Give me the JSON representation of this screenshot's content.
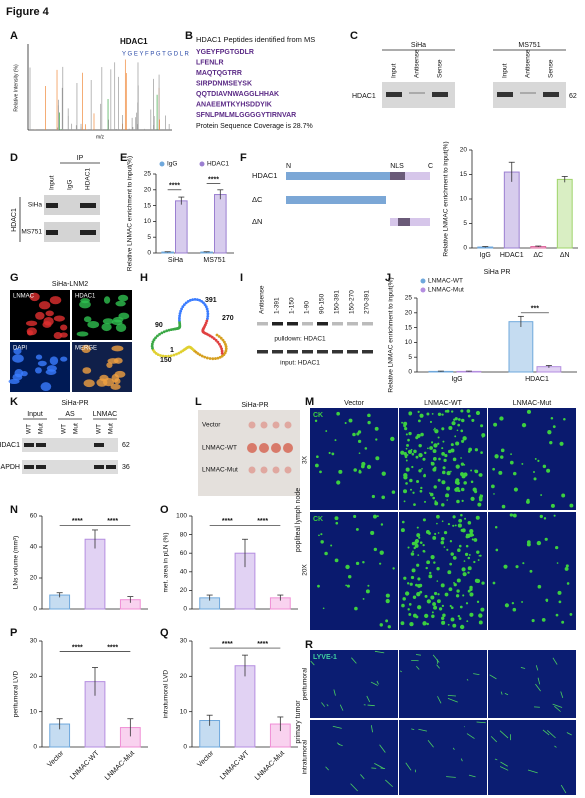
{
  "figure_title": "Figure 4",
  "panel_labels": [
    "A",
    "B",
    "C",
    "D",
    "E",
    "F",
    "G",
    "H",
    "I",
    "J",
    "K",
    "L",
    "M",
    "N",
    "O",
    "P",
    "Q",
    "R"
  ],
  "A": {
    "title": "HDAC1",
    "y_label": "Relative Intensity (%)",
    "x_label": "m/z",
    "sequence": "Y G E Y F P G T G D L R"
  },
  "B": {
    "title": "HDAC1 Peptides identified from MS",
    "peptides": [
      "YGEYFPGTGDLR",
      "LFENLR",
      "MAQTQGTRR",
      "SIRPDNMSEYSK",
      "QQTDIAVNWAGGLHHAK",
      "ANAEEMTKYHSDDYIK",
      "SFNLPMLMLGGGGYTIRNVAR"
    ],
    "coverage": "Protein Sequence Coverage is 28.7%"
  },
  "C": {
    "cells": [
      "SiHa",
      "MS751"
    ],
    "lanes": [
      "Input",
      "Antisense",
      "Sense"
    ],
    "protein": "HDAC1",
    "marker": "62"
  },
  "D": {
    "ip": "IP",
    "lanes": [
      "Input",
      "IgG",
      "HDAC1"
    ],
    "protein": "HDAC1",
    "cells": [
      "SiHa",
      "MS751"
    ]
  },
  "F_schematic": {
    "ends": [
      "N",
      "NLS",
      "C"
    ],
    "constructs": [
      "HDAC1",
      "ΔC",
      "ΔN"
    ]
  },
  "G": {
    "title": "SiHa-LNM2",
    "channels": [
      "LNMAC",
      "HDAC1",
      "DAPI",
      "MERGE"
    ]
  },
  "H": {
    "positions": [
      "1",
      "90",
      "150",
      "270",
      "391"
    ]
  },
  "I": {
    "lanes": [
      "Antisense",
      "1-391",
      "1-150",
      "1-90",
      "90-150",
      "150-391",
      "150-270",
      "270-391"
    ],
    "rows": [
      "pulldown: HDAC1",
      "input: HDAC1"
    ]
  },
  "K": {
    "title": "SiHa-PR",
    "groups": [
      "Input",
      "AS",
      "LNMAC"
    ],
    "lanes": [
      "WT",
      "Mut"
    ],
    "proteins": [
      "HDAC1",
      "GAPDH"
    ],
    "markers": [
      "62",
      "36"
    ]
  },
  "L": {
    "title": "SiHa-PR",
    "rows": [
      "Vector",
      "LNMAC-WT",
      "LNMAC-Mut"
    ]
  },
  "M": {
    "columns": [
      "Vector",
      "LNMAC-WT",
      "LNMAC-Mut"
    ],
    "stain": "CK",
    "magnifications": [
      "3X",
      "20X"
    ],
    "tissue": "popliteal lymph node"
  },
  "R": {
    "stain": "LYVE-1",
    "regions": [
      "peritumoral",
      "intratumoral"
    ],
    "tissue": "primary tumor"
  },
  "chart_data": [
    {
      "type": "bar",
      "y_label": "Relative LNMAC enrichment to input(%)",
      "categories": [
        "SiHa",
        "MS751"
      ],
      "series": [
        {
          "name": "IgG",
          "color": "#6fa8dc",
          "values": [
            0.3,
            0.3
          ],
          "errors": [
            0.1,
            0.1
          ]
        },
        {
          "name": "HDAC1",
          "color": "#9b7fd1",
          "values": [
            16.5,
            18.5
          ],
          "errors": [
            1.2,
            1.5
          ]
        }
      ],
      "ylim": [
        0,
        25
      ],
      "yticks": [
        0,
        5,
        10,
        15,
        20,
        25
      ],
      "annotations": [
        "****",
        "****"
      ]
    },
    {
      "type": "bar",
      "y_label": "Relative LNMAC enrichment to input(%)",
      "categories": [
        "IgG",
        "HDAC1",
        "ΔC",
        "ΔN"
      ],
      "values": [
        0.2,
        15.5,
        0.3,
        14
      ],
      "errors": [
        0.1,
        2,
        0.1,
        0.6
      ],
      "colors": [
        "#6fa8dc",
        "#9b7fd1",
        "#e06aa0",
        "#9fd46a"
      ],
      "ylim": [
        0,
        20
      ],
      "yticks": [
        0,
        5,
        10,
        15,
        20
      ]
    },
    {
      "type": "bar",
      "title": "SiHa PR",
      "y_label": "Relative LNMAC enrichment to input(%)",
      "categories": [
        "IgG",
        "HDAC1"
      ],
      "series": [
        {
          "name": "LNMAC-WT",
          "color": "#6fa8dc",
          "values": [
            0.2,
            17
          ],
          "errors": [
            0.1,
            1.8
          ]
        },
        {
          "name": "LNMAC-Mut",
          "color": "#b48ee0",
          "values": [
            0.2,
            1.8
          ],
          "errors": [
            0.1,
            0.4
          ]
        }
      ],
      "ylim": [
        0,
        25
      ],
      "yticks": [
        0,
        5,
        10,
        15,
        20,
        25
      ],
      "annotations": [
        "***"
      ]
    },
    {
      "type": "bar",
      "y_label": "LNs volume (mm³)",
      "values": [
        9,
        45,
        6
      ],
      "errors": [
        1.5,
        6,
        2
      ],
      "colors": [
        "#6fa8dc",
        "#b48ee0",
        "#f08fd6"
      ],
      "ylim": [
        0,
        60
      ],
      "yticks": [
        0,
        20,
        40,
        60
      ],
      "annotations": [
        "****",
        "****"
      ]
    },
    {
      "type": "bar",
      "y_label": "met. area in pLN (%)",
      "values": [
        12,
        60,
        12
      ],
      "errors": [
        3,
        15,
        3
      ],
      "colors": [
        "#6fa8dc",
        "#b48ee0",
        "#f08fd6"
      ],
      "ylim": [
        0,
        100
      ],
      "yticks": [
        0,
        20,
        40,
        60,
        80,
        100
      ],
      "annotations": [
        "****",
        "****"
      ]
    },
    {
      "type": "bar",
      "y_label": "peritumoral LVD",
      "categories": [
        "Vector",
        "LNMAC-WT",
        "LNMAC-Mut"
      ],
      "values": [
        6.5,
        18.5,
        5.5
      ],
      "errors": [
        1.5,
        4,
        2.5
      ],
      "colors": [
        "#6fa8dc",
        "#b48ee0",
        "#f08fd6"
      ],
      "ylim": [
        0,
        30
      ],
      "yticks": [
        0,
        10,
        20,
        30
      ],
      "annotations": [
        "****",
        "****"
      ]
    },
    {
      "type": "bar",
      "y_label": "intratumoral LVD",
      "categories": [
        "Vector",
        "LNMAC-WT",
        "LNMAC-Mut"
      ],
      "values": [
        7.5,
        23,
        6.5
      ],
      "errors": [
        1.5,
        3,
        2
      ],
      "colors": [
        "#6fa8dc",
        "#b48ee0",
        "#f08fd6"
      ],
      "ylim": [
        0,
        30
      ],
      "yticks": [
        0,
        10,
        20,
        30
      ],
      "annotations": [
        "****",
        "****"
      ]
    }
  ]
}
